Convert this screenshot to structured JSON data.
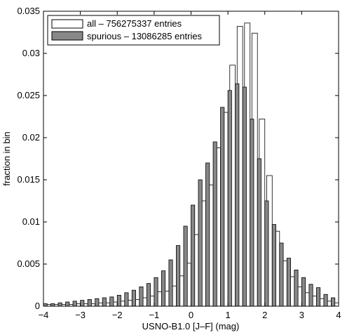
{
  "chart_data": {
    "type": "bar",
    "xlabel": "USNO-B1.0 [J–F] (mag)",
    "ylabel": "fraction in bin",
    "xlim": [
      -4,
      4
    ],
    "ylim": [
      0,
      0.035
    ],
    "xticks": [
      "-4",
      "-3",
      "-2",
      "-1",
      "0",
      "1",
      "2",
      "3",
      "4"
    ],
    "yticks": [
      "0",
      "0.005",
      "0.01",
      "0.015",
      "0.02",
      "0.025",
      "0.03",
      "0.035"
    ],
    "grid": false,
    "legend_position": "top-left",
    "bin_width": 0.2,
    "bin_centers": [
      -3.9,
      -3.7,
      -3.5,
      -3.3,
      -3.1,
      -2.9,
      -2.7,
      -2.5,
      -2.3,
      -2.1,
      -1.9,
      -1.7,
      -1.5,
      -1.3,
      -1.1,
      -0.9,
      -0.7,
      -0.5,
      -0.3,
      -0.1,
      0.1,
      0.3,
      0.5,
      0.7,
      0.9,
      1.1,
      1.3,
      1.5,
      1.7,
      1.9,
      2.1,
      2.3,
      2.5,
      2.7,
      2.9,
      3.1,
      3.3,
      3.5,
      3.7,
      3.9
    ],
    "series": [
      {
        "name": "all – 756275337 entries",
        "color": "#ffffff",
        "values": [
          0.0002,
          0.0002,
          0.0002,
          0.0002,
          0.0003,
          0.0003,
          0.0003,
          0.0004,
          0.0004,
          0.0005,
          0.0006,
          0.0007,
          0.0008,
          0.001,
          0.0012,
          0.0017,
          0.0018,
          0.0024,
          0.0036,
          0.0051,
          0.0085,
          0.0125,
          0.0144,
          0.0188,
          0.023,
          0.0286,
          0.0332,
          0.0336,
          0.0324,
          0.0222,
          0.0155,
          0.0089,
          0.0054,
          0.0035,
          0.0023,
          0.0016,
          0.0012,
          0.0009,
          0.0006,
          0.0004
        ]
      },
      {
        "name": "spurious – 13086285 entries",
        "color": "#888888",
        "values": [
          0.0003,
          0.0003,
          0.0004,
          0.0005,
          0.0006,
          0.0007,
          0.0008,
          0.0009,
          0.001,
          0.0011,
          0.0013,
          0.0016,
          0.0019,
          0.0023,
          0.0027,
          0.0034,
          0.0042,
          0.0055,
          0.0072,
          0.0095,
          0.012,
          0.015,
          0.017,
          0.0195,
          0.0236,
          0.0256,
          0.0264,
          0.026,
          0.0222,
          0.0175,
          0.0125,
          0.0097,
          0.0075,
          0.0057,
          0.0043,
          0.0034,
          0.0026,
          0.0022,
          0.0014,
          0.001
        ]
      }
    ]
  }
}
